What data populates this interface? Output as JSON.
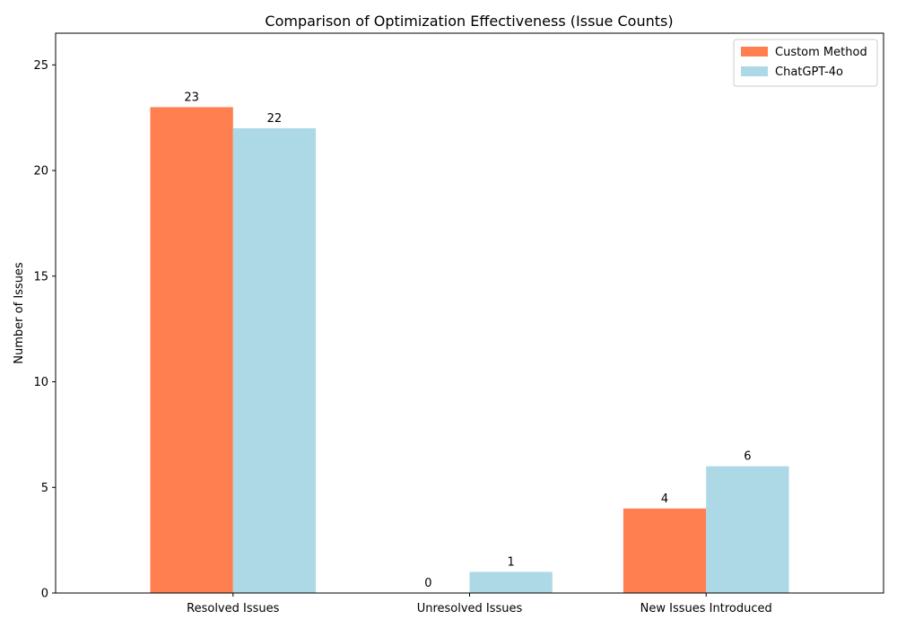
{
  "chart_data": {
    "type": "bar",
    "title": "Comparison of Optimization Effectiveness (Issue Counts)",
    "xlabel": "",
    "ylabel": "Number of Issues",
    "categories": [
      "Resolved Issues",
      "Unresolved Issues",
      "New Issues Introduced"
    ],
    "series": [
      {
        "name": "Custom Method",
        "values": [
          23,
          0,
          4
        ],
        "color": "#ff7f50"
      },
      {
        "name": "ChatGPT-4o",
        "values": [
          22,
          1,
          6
        ],
        "color": "#add8e6"
      }
    ],
    "ylim": [
      0,
      26.5
    ],
    "yticks": [
      0,
      5,
      10,
      15,
      20,
      25
    ],
    "grid": false,
    "legend_position": "top-right",
    "data_labels": true
  }
}
